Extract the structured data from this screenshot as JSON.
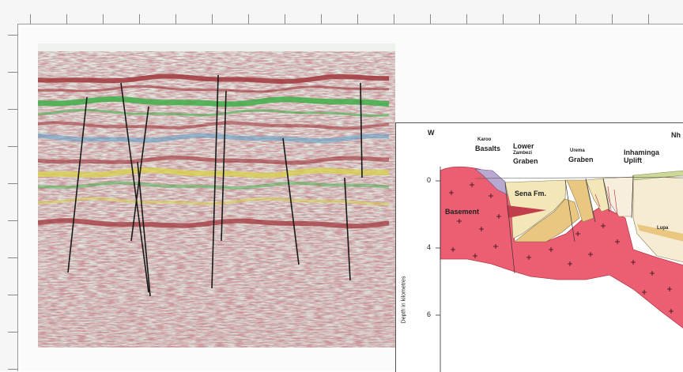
{
  "ruler": {
    "top_labels": [
      "",
      "",
      "",
      "",
      "",
      "",
      "",
      "",
      "",
      "",
      "",
      "",
      "",
      "",
      "",
      "",
      "",
      "",
      ""
    ]
  },
  "inset": {
    "direction_label": "W",
    "right_cut_label": "Nh",
    "labels": {
      "karoo": "Karoo",
      "basalts": "Basalts",
      "lower": "Lower",
      "zambezi": "Zambezi",
      "graben_lower": "Graben",
      "urema": "Urema",
      "graben_urema": "Graben",
      "inhaminga": "Inhaminga",
      "uplift": "Uplift",
      "sena": "Sena Fm.",
      "basement": "Basement",
      "upper_frag": "Lupa"
    },
    "axis": {
      "title": "Depth in kilometres",
      "ticks": [
        "0",
        "4",
        "6"
      ]
    }
  },
  "colors": {
    "basement": "#ec5f72",
    "sena": "#f3e6b8",
    "basalt": "#b9a8cf",
    "sediment": "#e9c781",
    "seismic_red": "#9c2e33",
    "seismic_green": "#3fae48",
    "seismic_yellow": "#d8d24a",
    "seismic_blue": "#5a9cc9"
  }
}
